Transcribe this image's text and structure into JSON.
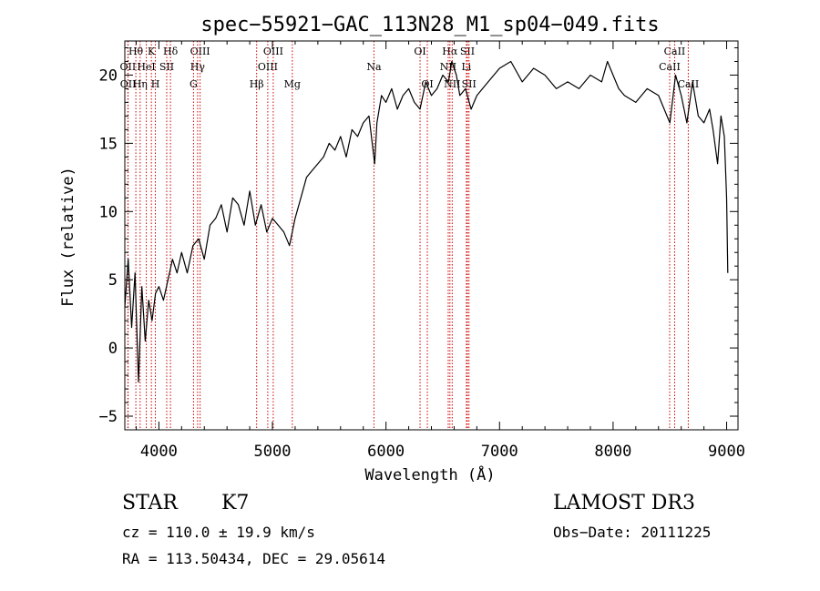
{
  "chart_data": {
    "type": "line",
    "title": "spec−55921−GAC_113N28_M1_sp04−049.fits",
    "xlabel": "Wavelength (Å)",
    "ylabel": "Flux (relative)",
    "xlim": [
      3700,
      9100
    ],
    "ylim": [
      -6,
      22.5
    ],
    "xticks": [
      {
        "value": 4000,
        "label": "4000"
      },
      {
        "value": 5000,
        "label": "5000"
      },
      {
        "value": 6000,
        "label": "6000"
      },
      {
        "value": 7000,
        "label": "7000"
      },
      {
        "value": 8000,
        "label": "8000"
      },
      {
        "value": 9000,
        "label": "9000"
      }
    ],
    "yticks": [
      {
        "value": -5,
        "label": "−5"
      },
      {
        "value": 0,
        "label": "0"
      },
      {
        "value": 5,
        "label": "5"
      },
      {
        "value": 10,
        "label": "10"
      },
      {
        "value": 15,
        "label": "15"
      },
      {
        "value": 20,
        "label": "20"
      }
    ],
    "series": [
      {
        "name": "flux",
        "x": [
          3700,
          3730,
          3760,
          3790,
          3820,
          3850,
          3880,
          3910,
          3940,
          3970,
          4000,
          4040,
          4080,
          4120,
          4160,
          4200,
          4250,
          4300,
          4350,
          4400,
          4450,
          4500,
          4550,
          4600,
          4650,
          4700,
          4750,
          4800,
          4850,
          4900,
          4950,
          5000,
          5050,
          5100,
          5150,
          5200,
          5250,
          5300,
          5350,
          5400,
          5450,
          5500,
          5550,
          5600,
          5650,
          5700,
          5750,
          5800,
          5850,
          5900,
          5920,
          5960,
          6000,
          6050,
          6100,
          6150,
          6200,
          6250,
          6300,
          6350,
          6400,
          6450,
          6500,
          6550,
          6580,
          6620,
          6650,
          6700,
          6750,
          6800,
          6850,
          6900,
          6950,
          7000,
          7100,
          7200,
          7300,
          7400,
          7500,
          7600,
          7700,
          7800,
          7900,
          7950,
          8000,
          8050,
          8100,
          8200,
          8300,
          8400,
          8450,
          8500,
          8550,
          8600,
          8650,
          8700,
          8750,
          8800,
          8850,
          8880,
          8920,
          8950,
          8980,
          9000,
          9010
        ],
        "y": [
          3.0,
          6.5,
          1.5,
          5.5,
          -2.5,
          4.5,
          0.5,
          3.5,
          2.0,
          4.0,
          4.5,
          3.5,
          5.0,
          6.5,
          5.5,
          7.0,
          5.5,
          7.5,
          8.0,
          6.5,
          9.0,
          9.5,
          10.5,
          8.5,
          11.0,
          10.5,
          9.0,
          11.5,
          9.0,
          10.5,
          8.5,
          9.5,
          9.0,
          8.5,
          7.5,
          9.5,
          11.0,
          12.5,
          13.0,
          13.5,
          14.0,
          15.0,
          14.5,
          15.5,
          14.0,
          16.0,
          15.5,
          16.5,
          17.0,
          13.5,
          16.5,
          18.5,
          18.0,
          19.0,
          17.5,
          18.5,
          19.0,
          18.0,
          17.5,
          19.5,
          18.5,
          19.0,
          20.0,
          19.5,
          21.0,
          20.0,
          18.5,
          19.0,
          17.5,
          18.5,
          19.0,
          19.5,
          20.0,
          20.5,
          21.0,
          19.5,
          20.5,
          20.0,
          19.0,
          19.5,
          19.0,
          20.0,
          19.5,
          21.0,
          20.0,
          19.0,
          18.5,
          18.0,
          19.0,
          18.5,
          17.5,
          16.5,
          20.0,
          18.5,
          16.5,
          19.5,
          17.0,
          16.5,
          17.5,
          16.0,
          13.5,
          17.0,
          15.5,
          11.0,
          5.5
        ]
      }
    ],
    "line_markers": [
      {
        "label": "Hθ",
        "x": 3797,
        "row": 0
      },
      {
        "label": "K",
        "x": 3934,
        "row": 0
      },
      {
        "label": "Hδ",
        "x": 4102,
        "row": 0
      },
      {
        "label": "OIII",
        "x": 4363,
        "row": 0
      },
      {
        "label": "OII",
        "x": 3727,
        "row": 1
      },
      {
        "label": "HeI",
        "x": 3889,
        "row": 1
      },
      {
        "label": "SII",
        "x": 4069,
        "row": 1
      },
      {
        "label": "Hγ",
        "x": 4341,
        "row": 1
      },
      {
        "label": "OII",
        "x": 3729,
        "row": 2
      },
      {
        "label": "Hη",
        "x": 3835,
        "row": 2
      },
      {
        "label": "H",
        "x": 3969,
        "row": 2
      },
      {
        "label": "G",
        "x": 4305,
        "row": 2
      },
      {
        "label": "OIII",
        "x": 5007,
        "row": 0
      },
      {
        "label": "OIII",
        "x": 4959,
        "row": 1
      },
      {
        "label": "Hβ",
        "x": 4861,
        "row": 2
      },
      {
        "label": "Mg",
        "x": 5175,
        "row": 2
      },
      {
        "label": "Na",
        "x": 5894,
        "row": 1
      },
      {
        "label": "OI",
        "x": 6300,
        "row": 0
      },
      {
        "label": "OI",
        "x": 6364,
        "row": 2
      },
      {
        "label": "Hα",
        "x": 6563,
        "row": 0
      },
      {
        "label": "SII",
        "x": 6717,
        "row": 0
      },
      {
        "label": "NII",
        "x": 6548,
        "row": 1
      },
      {
        "label": "Li",
        "x": 6708,
        "row": 1
      },
      {
        "label": "NII",
        "x": 6583,
        "row": 2
      },
      {
        "label": "SII",
        "x": 6731,
        "row": 2
      },
      {
        "label": "CaII",
        "x": 8542,
        "row": 0
      },
      {
        "label": "CaII",
        "x": 8498,
        "row": 1
      },
      {
        "label": "CaII",
        "x": 8662,
        "row": 2
      }
    ]
  },
  "info": {
    "class": "STAR",
    "subclass": "K7",
    "survey": "LAMOST DR3",
    "cz": "cz = 110.0 ± 19.9 km/s",
    "obs_date": "Obs−Date: 20111225",
    "radec": "RA = 113.50434, DEC =  29.05614"
  },
  "colors": {
    "spectrum": "#000000",
    "marker_line": "#cc0000",
    "axes": "#000000"
  }
}
